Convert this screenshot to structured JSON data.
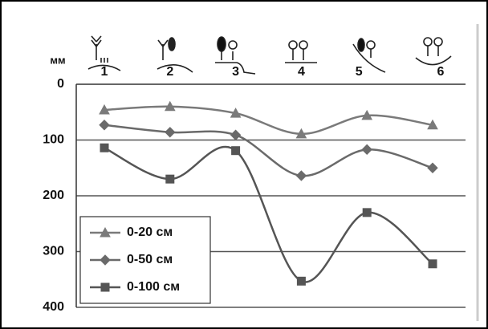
{
  "chart_data": {
    "type": "line",
    "y_label": "мм",
    "categories": [
      "1",
      "2",
      "3",
      "4",
      "5",
      "6"
    ],
    "ylim": [
      0,
      400
    ],
    "yticks": [
      0,
      100,
      200,
      300,
      400
    ],
    "y_inverted": true,
    "grid": true,
    "legend": "lower left",
    "series": [
      {
        "name": "0-20 см",
        "color": "#7a7a7a",
        "marker": "triangle",
        "values": [
          46,
          40,
          52,
          89,
          56,
          73
        ]
      },
      {
        "name": "0-50 см",
        "color": "#6a6a6a",
        "marker": "diamond",
        "values": [
          73,
          86,
          91,
          164,
          117,
          150
        ]
      },
      {
        "name": "0-100 см",
        "color": "#555555",
        "marker": "square",
        "values": [
          114,
          170,
          119,
          353,
          230,
          322
        ]
      }
    ]
  }
}
